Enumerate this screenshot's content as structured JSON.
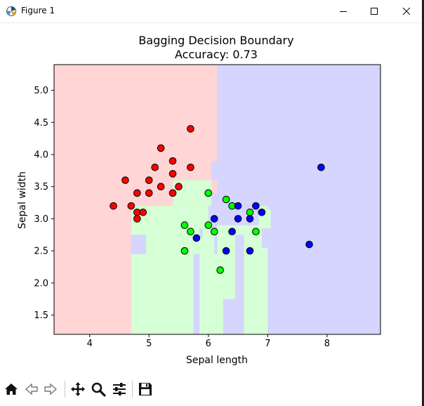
{
  "window": {
    "title": "Figure 1"
  },
  "toolbar": {
    "buttons": [
      {
        "name": "home-icon"
      },
      {
        "name": "back-icon"
      },
      {
        "name": "forward-icon"
      },
      {
        "name": "pan-icon"
      },
      {
        "name": "zoom-icon"
      },
      {
        "name": "configure-icon"
      },
      {
        "name": "save-icon"
      }
    ]
  },
  "chart_data": {
    "type": "scatter",
    "title": "Bagging Decision Boundary",
    "subtitle": "Accuracy: 0.73",
    "xlabel": "Sepal length",
    "ylabel": "Sepal width",
    "xlim": [
      3.4,
      8.9
    ],
    "ylim": [
      1.2,
      5.4
    ],
    "xticks": [
      "4",
      "5",
      "6",
      "7",
      "8"
    ],
    "yticks": [
      "1.5",
      "2.0",
      "2.5",
      "3.0",
      "3.5",
      "4.0",
      "4.5",
      "5.0"
    ],
    "grid": false,
    "colors": {
      "class0_point": "#ff0000",
      "class1_point": "#00ff00",
      "class2_point": "#0000ff",
      "class0_region": "#ffd5d5",
      "class1_region": "#d5ffd5",
      "class2_region": "#d5d5ff"
    },
    "regions": [
      {
        "class": 0,
        "x": [
          3.4,
          6.15
        ],
        "y": [
          1.2,
          5.4
        ]
      },
      {
        "class": 2,
        "x": [
          6.15,
          8.9
        ],
        "y": [
          1.2,
          5.4
        ]
      },
      {
        "class": 1,
        "x": [
          4.7,
          7.0
        ],
        "y": [
          1.2,
          3.2
        ]
      },
      {
        "class": 1,
        "x": [
          5.4,
          6.05
        ],
        "y": [
          3.2,
          3.6
        ]
      },
      {
        "class": 1,
        "x": [
          5.2,
          5.4
        ],
        "y": [
          2.9,
          3.2
        ]
      },
      {
        "class": 2,
        "x": [
          6.05,
          6.15
        ],
        "y": [
          3.6,
          3.9
        ]
      },
      {
        "class": 2,
        "x": [
          6.05,
          6.85
        ],
        "y": [
          2.9,
          3.4
        ]
      },
      {
        "class": 1,
        "x": [
          6.85,
          7.05
        ],
        "y": [
          2.85,
          3.15
        ]
      },
      {
        "class": 2,
        "x": [
          4.7,
          4.95
        ],
        "y": [
          2.45,
          2.75
        ]
      },
      {
        "class": 1,
        "x": [
          5.4,
          5.6
        ],
        "y": [
          2.45,
          2.75
        ]
      },
      {
        "class": 2,
        "x": [
          5.75,
          5.85
        ],
        "y": [
          1.2,
          2.45
        ]
      },
      {
        "class": 2,
        "x": [
          5.85,
          5.9
        ],
        "y": [
          2.7,
          2.85
        ]
      },
      {
        "class": 2,
        "x": [
          6.0,
          6.15
        ],
        "y": [
          2.85,
          3.2
        ]
      },
      {
        "class": 2,
        "x": [
          6.1,
          6.15
        ],
        "y": [
          2.45,
          2.85
        ]
      },
      {
        "class": 2,
        "x": [
          6.25,
          6.45
        ],
        "y": [
          1.2,
          1.75
        ]
      },
      {
        "class": 2,
        "x": [
          6.45,
          6.6
        ],
        "y": [
          1.2,
          2.75
        ]
      },
      {
        "class": 2,
        "x": [
          6.55,
          6.6
        ],
        "y": [
          2.9,
          3.4
        ]
      },
      {
        "class": 2,
        "x": [
          6.9,
          7.0
        ],
        "y": [
          2.55,
          2.85
        ]
      },
      {
        "class": 1,
        "x": [
          6.25,
          6.35
        ],
        "y": [
          2.4,
          2.85
        ]
      },
      {
        "class": 1,
        "x": [
          6.15,
          6.25
        ],
        "y": [
          2.05,
          2.4
        ]
      }
    ],
    "series": [
      {
        "name": "0",
        "class": 0,
        "points": [
          [
            4.4,
            3.2
          ],
          [
            4.6,
            3.6
          ],
          [
            4.7,
            3.2
          ],
          [
            4.8,
            3.4
          ],
          [
            4.8,
            3.1
          ],
          [
            4.8,
            3.0
          ],
          [
            4.9,
            3.1
          ],
          [
            5.0,
            3.6
          ],
          [
            5.0,
            3.4
          ],
          [
            5.1,
            3.8
          ],
          [
            5.2,
            4.1
          ],
          [
            5.2,
            3.5
          ],
          [
            5.4,
            3.9
          ],
          [
            5.4,
            3.7
          ],
          [
            5.4,
            3.4
          ],
          [
            5.5,
            3.5
          ],
          [
            5.7,
            4.4
          ],
          [
            5.7,
            3.8
          ]
        ]
      },
      {
        "name": "1",
        "class": 1,
        "points": [
          [
            5.6,
            2.9
          ],
          [
            5.6,
            2.5
          ],
          [
            5.7,
            2.8
          ],
          [
            6.0,
            3.4
          ],
          [
            6.0,
            2.9
          ],
          [
            6.1,
            2.8
          ],
          [
            6.2,
            2.2
          ],
          [
            6.3,
            3.3
          ],
          [
            6.4,
            3.2
          ],
          [
            6.7,
            3.1
          ],
          [
            6.8,
            2.8
          ]
        ]
      },
      {
        "name": "2",
        "class": 2,
        "points": [
          [
            5.8,
            2.7
          ],
          [
            6.1,
            3.0
          ],
          [
            6.3,
            2.5
          ],
          [
            6.4,
            2.8
          ],
          [
            6.5,
            3.2
          ],
          [
            6.5,
            3.0
          ],
          [
            6.7,
            3.0
          ],
          [
            6.7,
            2.5
          ],
          [
            6.8,
            3.2
          ],
          [
            6.9,
            3.1
          ],
          [
            7.7,
            2.6
          ],
          [
            7.9,
            3.8
          ]
        ]
      }
    ]
  }
}
